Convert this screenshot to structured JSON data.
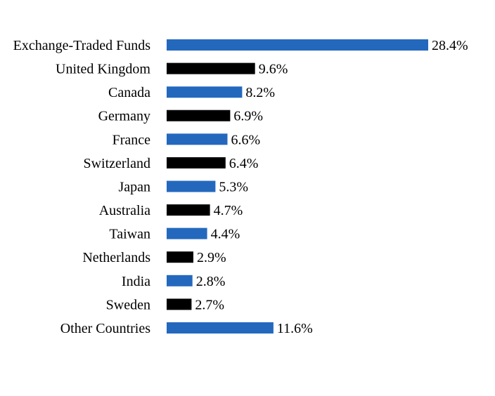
{
  "chart_data": {
    "type": "bar",
    "orientation": "horizontal",
    "categories": [
      "Exchange-Traded Funds",
      "United Kingdom",
      "Canada",
      "Germany",
      "France",
      "Switzerland",
      "Japan",
      "Australia",
      "Taiwan",
      "Netherlands",
      "India",
      "Sweden",
      "Other Countries"
    ],
    "values": [
      28.4,
      9.6,
      8.2,
      6.9,
      6.6,
      6.4,
      5.3,
      4.7,
      4.4,
      2.9,
      2.8,
      2.7,
      11.6
    ],
    "value_labels": [
      "28.4%",
      "9.6%",
      "8.2%",
      "6.9%",
      "6.6%",
      "6.4%",
      "5.3%",
      "4.7%",
      "4.4%",
      "2.9%",
      "2.8%",
      "2.7%",
      "11.6%"
    ],
    "bar_colors": [
      "#2468BE",
      "#000000",
      "#2468BE",
      "#000000",
      "#2468BE",
      "#000000",
      "#2468BE",
      "#000000",
      "#2468BE",
      "#000000",
      "#2468BE",
      "#000000",
      "#2468BE"
    ],
    "title": "",
    "xlabel": "",
    "ylabel": "",
    "xlim": [
      0,
      28.4
    ],
    "grid": false,
    "legend": "none"
  }
}
